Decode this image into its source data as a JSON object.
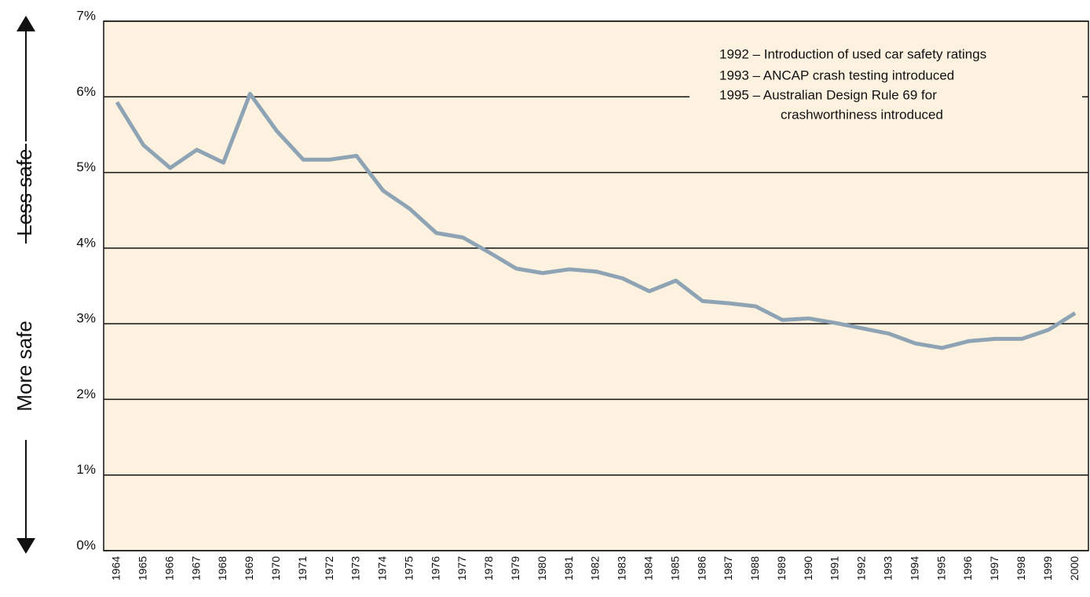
{
  "chart_data": {
    "type": "line",
    "y_axis_labels": [
      "Less safe",
      "More safe"
    ],
    "annotations": [
      "1992 – Introduction of used car safety ratings",
      "1993 – ANCAP crash testing introduced",
      "1995 – Australian Design Rule 69 for",
      "crashworthiness introduced"
    ],
    "categories": [
      "1964",
      "1965",
      "1966",
      "1967",
      "1968",
      "1969",
      "1970",
      "1971",
      "1972",
      "1973",
      "1974",
      "1975",
      "1976",
      "1977",
      "1978",
      "1979",
      "1980",
      "1981",
      "1982",
      "1983",
      "1984",
      "1985",
      "1986",
      "1987",
      "1988",
      "1989",
      "1990",
      "1991",
      "1992",
      "1993",
      "1994",
      "1995",
      "1996",
      "1997",
      "1998",
      "1999",
      "2000"
    ],
    "values": [
      5.93,
      5.36,
      5.06,
      5.3,
      5.13,
      6.04,
      5.55,
      5.17,
      5.17,
      5.22,
      4.76,
      4.52,
      4.2,
      4.14,
      3.94,
      3.73,
      3.67,
      3.72,
      3.69,
      3.6,
      3.43,
      3.57,
      3.3,
      3.27,
      3.23,
      3.05,
      3.07,
      3.01,
      2.94,
      2.87,
      2.74,
      2.68,
      2.77,
      2.8,
      2.8,
      2.92,
      3.14
    ],
    "color": "#8ea4b4",
    "background": "#fdf1e0",
    "ylim": [
      0,
      7
    ],
    "yticks": [
      {
        "value": 0,
        "label": "0%"
      },
      {
        "value": 1,
        "label": "1%"
      },
      {
        "value": 2,
        "label": "2%"
      },
      {
        "value": 3,
        "label": "3%"
      },
      {
        "value": 4,
        "label": "4%"
      },
      {
        "value": 5,
        "label": "5%"
      },
      {
        "value": 6,
        "label": "6%"
      },
      {
        "value": 7,
        "label": "7%"
      }
    ],
    "grid": true
  }
}
